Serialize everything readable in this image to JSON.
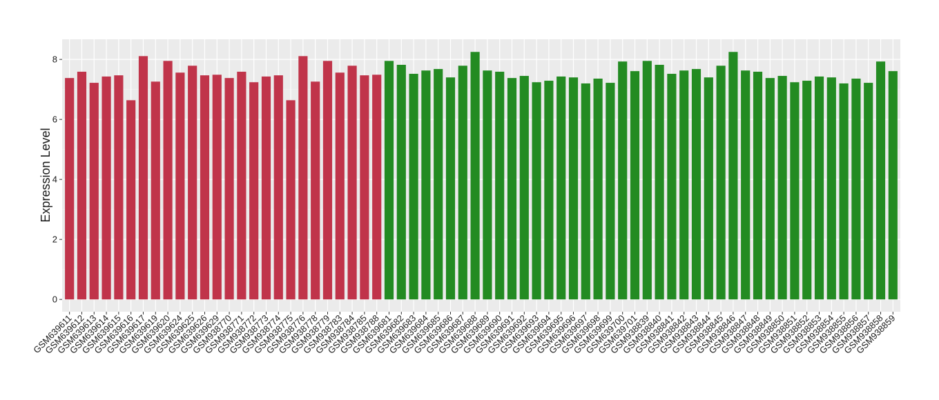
{
  "chart_data": {
    "type": "bar",
    "y_label": "Expression Level",
    "ylim": [
      -0.41,
      8.67
    ],
    "yticks": [
      0,
      2,
      4,
      6,
      8
    ],
    "grid": true,
    "series": [
      {
        "color": "#c0344a",
        "categories": [
          "GSM639611",
          "GSM639612",
          "GSM639613",
          "GSM639614",
          "GSM639615",
          "GSM639616",
          "GSM639617",
          "GSM639619",
          "GSM639620",
          "GSM639624",
          "GSM639625",
          "GSM639626",
          "GSM639629",
          "GSM938770",
          "GSM938771",
          "GSM938772",
          "GSM938773",
          "GSM938774",
          "GSM938775",
          "GSM938776",
          "GSM938778",
          "GSM938779",
          "GSM938783",
          "GSM938784",
          "GSM938785",
          "GSM938788"
        ],
        "values": [
          7.38,
          7.59,
          7.22,
          7.43,
          7.47,
          6.64,
          8.11,
          7.26,
          7.95,
          7.56,
          7.79,
          7.47,
          7.49,
          7.38,
          7.59,
          7.24,
          7.43,
          7.47,
          6.64,
          8.11,
          7.26,
          7.95,
          7.56,
          7.79,
          7.47,
          7.49
        ]
      },
      {
        "color": "#238b22",
        "categories": [
          "GSM639681",
          "GSM639682",
          "GSM639683",
          "GSM639684",
          "GSM639685",
          "GSM639686",
          "GSM639687",
          "GSM639688",
          "GSM639689",
          "GSM639690",
          "GSM639691",
          "GSM639692",
          "GSM639693",
          "GSM639694",
          "GSM639695",
          "GSM639696",
          "GSM639697",
          "GSM639698",
          "GSM639699",
          "GSM639700",
          "GSM639701",
          "GSM938839",
          "GSM938840",
          "GSM938841",
          "GSM938842",
          "GSM938843",
          "GSM938844",
          "GSM938845",
          "GSM938846",
          "GSM938847",
          "GSM938848",
          "GSM938849",
          "GSM938850",
          "GSM938851",
          "GSM938852",
          "GSM938853",
          "GSM938854",
          "GSM938855",
          "GSM938856",
          "GSM938857",
          "GSM938858",
          "GSM938859"
        ],
        "values": [
          7.95,
          7.82,
          7.52,
          7.63,
          7.68,
          7.4,
          7.79,
          8.25,
          7.63,
          7.59,
          7.38,
          7.45,
          7.24,
          7.29,
          7.43,
          7.4,
          7.2,
          7.36,
          7.22,
          7.93,
          7.61,
          7.95,
          7.82,
          7.52,
          7.63,
          7.68,
          7.4,
          7.79,
          8.25,
          7.63,
          7.59,
          7.38,
          7.45,
          7.24,
          7.29,
          7.43,
          7.4,
          7.2,
          7.36,
          7.22,
          7.93,
          7.61
        ]
      }
    ]
  }
}
